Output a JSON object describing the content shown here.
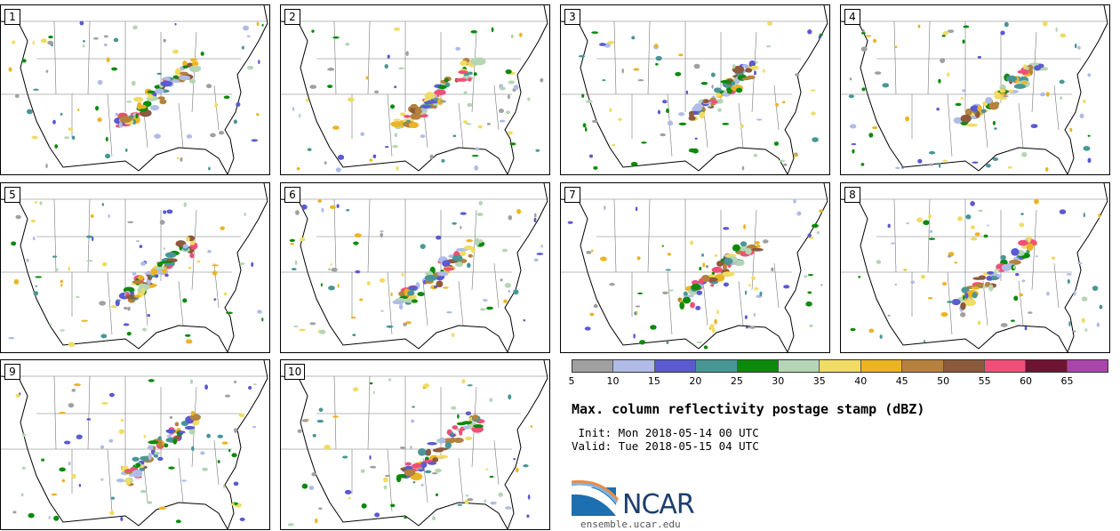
{
  "panels": [
    {
      "label": "1"
    },
    {
      "label": "2"
    },
    {
      "label": "3"
    },
    {
      "label": "4"
    },
    {
      "label": "5"
    },
    {
      "label": "6"
    },
    {
      "label": "7"
    },
    {
      "label": "8"
    },
    {
      "label": "9"
    },
    {
      "label": "10"
    }
  ],
  "colorbar": {
    "colors": [
      "#a0a0a0",
      "#b0bce6",
      "#5a5ad2",
      "#4a9696",
      "#0c8a0c",
      "#b4d6b4",
      "#f0dc64",
      "#ebb423",
      "#b4823c",
      "#8c5a3c",
      "#f05078",
      "#6e1432",
      "#aa46aa"
    ],
    "ticks": [
      "5",
      "10",
      "15",
      "20",
      "25",
      "30",
      "35",
      "40",
      "45",
      "50",
      "55",
      "60",
      "65"
    ]
  },
  "title": "Max. column reflectivity postage stamp (dBZ)",
  "init": " Init: Mon 2018-05-14 00 UTC",
  "valid": "Valid: Tue 2018-05-15 04 UTC",
  "logo": {
    "name": "NCAR",
    "url": "ensemble.ucar.edu"
  }
}
